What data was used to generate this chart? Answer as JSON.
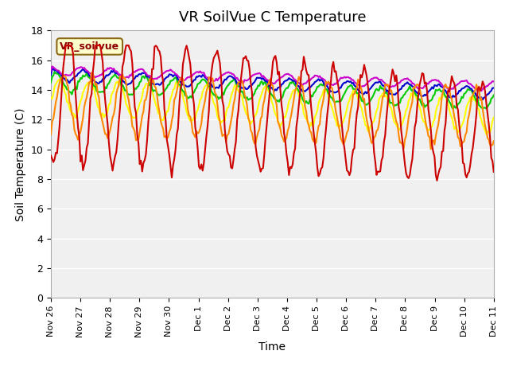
{
  "title": "VR SoilVue C Temperature",
  "xlabel": "Time",
  "ylabel": "Soil Temperature (C)",
  "ylim": [
    0,
    18
  ],
  "yticks": [
    0,
    2,
    4,
    6,
    8,
    10,
    12,
    14,
    16,
    18
  ],
  "x_labels": [
    "Nov 26",
    "Nov 27",
    "Nov 28",
    "Nov 29",
    "Nov 30",
    "Dec 1",
    "Dec 2",
    "Dec 3",
    "Dec 4",
    "Dec 5",
    "Dec 6",
    "Dec 7",
    "Dec 8",
    "Dec 9",
    "Dec 10",
    "Dec 11"
  ],
  "legend_label": "VR_soilvue",
  "series_colors": {
    "C-05_T": "#cc0000",
    "C-10_T": "#ff8800",
    "C-20_T": "#ffff00",
    "C-30_T": "#00cc00",
    "C-40_T": "#0000cc",
    "C-50_T": "#cc00cc"
  },
  "background_color": "#e8e8e8",
  "plot_bg_color": "#f0f0f0",
  "title_fontsize": 13,
  "axis_fontsize": 10,
  "tick_fontsize": 9,
  "legend_fontsize": 9,
  "num_points": 360
}
